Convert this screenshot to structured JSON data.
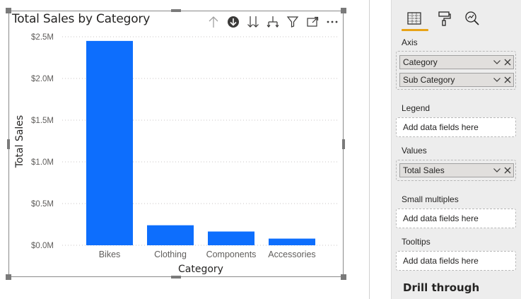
{
  "visual": {
    "title": "Total Sales by Category",
    "header_icons": [
      "arrow-up-icon",
      "drill-down-circle-icon",
      "double-down-arrow-icon",
      "expand-hierarchy-icon",
      "filter-icon",
      "focus-mode-icon",
      "more-options-icon"
    ]
  },
  "chart_data": {
    "type": "bar",
    "categories": [
      "Bikes",
      "Clothing",
      "Components",
      "Accessories"
    ],
    "values": [
      2450000,
      240000,
      165000,
      80000
    ],
    "xlabel": "Category",
    "ylabel": "Total Sales",
    "ylim": [
      0,
      2500000
    ],
    "yticks": [
      0,
      500000,
      1000000,
      1500000,
      2000000,
      2500000
    ],
    "ytick_labels": [
      "$0.0M",
      "$0.5M",
      "$1.0M",
      "$1.5M",
      "$2.0M",
      "$2.5M"
    ],
    "grid": true,
    "bar_color": "#0d6efd"
  },
  "pane": {
    "tabs": [
      "fields-grid-icon",
      "format-paintbrush-icon",
      "analytics-magnifier-icon"
    ],
    "active_tab_color": "#e8a317",
    "axis": {
      "label": "Axis",
      "fields": [
        "Category",
        "Sub Category"
      ]
    },
    "legend": {
      "label": "Legend",
      "placeholder": "Add data fields here"
    },
    "values": {
      "label": "Values",
      "fields": [
        "Total Sales"
      ]
    },
    "small_multiples": {
      "label": "Small multiples",
      "placeholder": "Add data fields here"
    },
    "tooltips": {
      "label": "Tooltips",
      "placeholder": "Add data fields here"
    },
    "drill_through": {
      "label": "Drill through"
    }
  }
}
